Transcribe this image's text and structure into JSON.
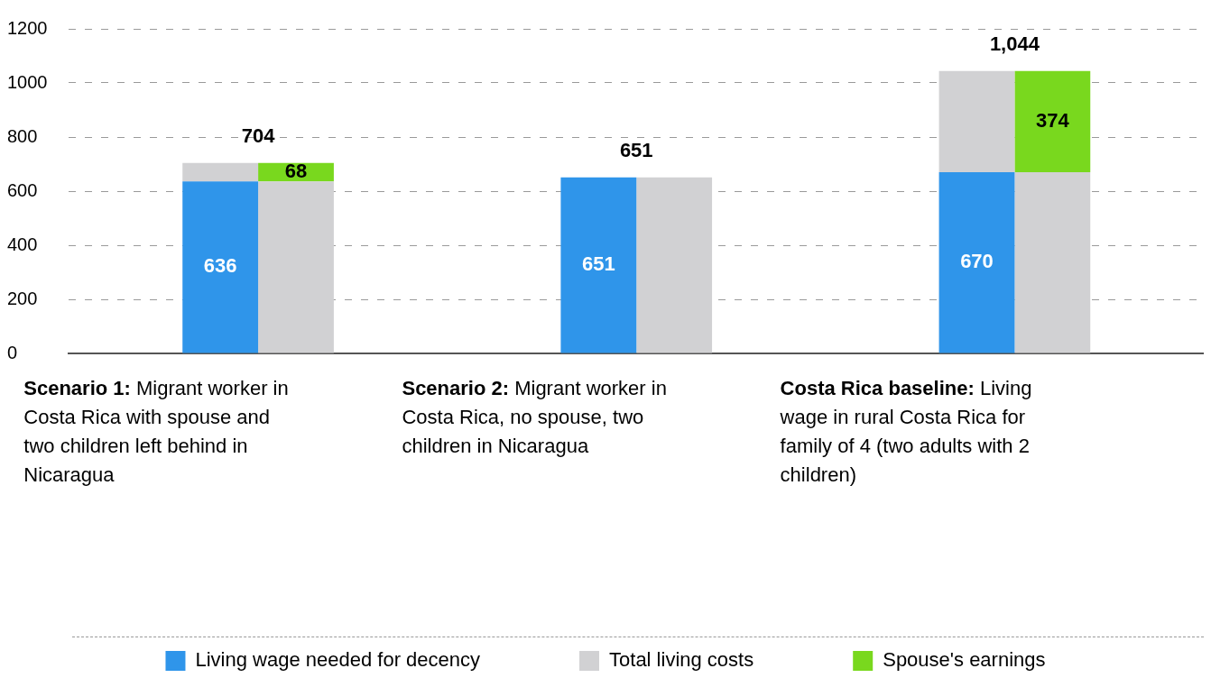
{
  "chart_data": {
    "type": "bar",
    "stacked": true,
    "categories": [
      "Scenario 1: Migrant worker in Costa Rica with spouse and two children left behind in Nicaragua",
      null,
      "Scenario 2: Migrant worker in Costa Rica, no spouse, two children in Nicaragua",
      null,
      "Costa Rica baseline: Living wage in rural Costa Rica for family of 4 (two adults with 2 children)",
      null
    ],
    "series": [
      {
        "name": "Living wage needed for decency",
        "color": "#2f95ea",
        "values": [
          636,
          null,
          651,
          null,
          670,
          null
        ],
        "value_labels": [
          "636",
          null,
          "651",
          null,
          "670",
          null
        ]
      },
      {
        "name": "Total living costs",
        "color": "#d1d1d3",
        "values": [
          68,
          636,
          null,
          651,
          374,
          670
        ]
      },
      {
        "name": "Spouse's earnings",
        "color": "#79d81e",
        "values": [
          null,
          68,
          null,
          null,
          null,
          374
        ],
        "value_labels": [
          null,
          "68",
          null,
          null,
          null,
          "374"
        ]
      }
    ],
    "totals": [
      "704",
      null,
      "651",
      null,
      "1,044",
      null
    ],
    "ylim": [
      0,
      1200
    ],
    "yticks": [
      0,
      200,
      400,
      600,
      800,
      1000,
      1200
    ],
    "grid": "y",
    "legend": "bottom"
  }
}
